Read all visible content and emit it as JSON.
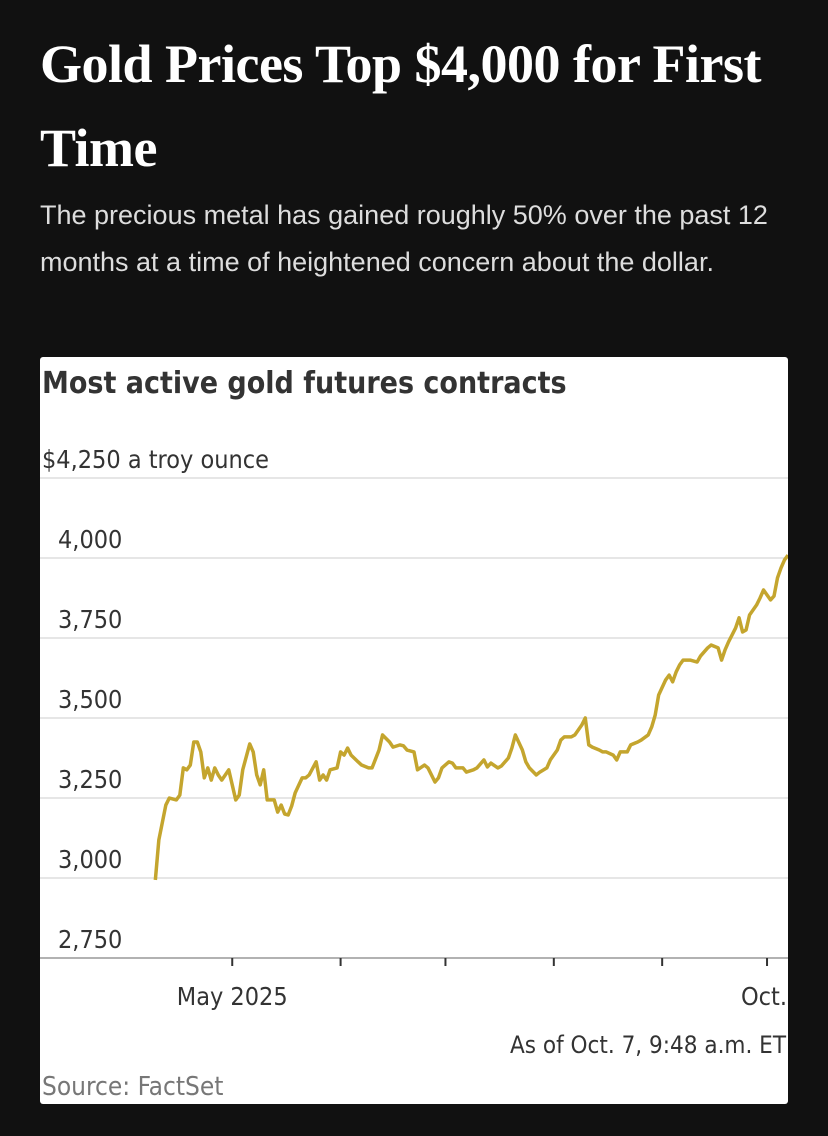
{
  "headline": "Gold Prices Top $4,000 for First Time",
  "subheadline": "The precious metal has gained roughly 50% over the past 12 months at a time of heightened concern about the dollar.",
  "chart_data": {
    "type": "line",
    "title": "Most active gold futures contracts",
    "note": "As of Oct. 7, 9:48 a.m. ET",
    "source": "Source: FactSet",
    "x": [
      99,
      100,
      102,
      103,
      105,
      106,
      107,
      108,
      109,
      110,
      111,
      112,
      113,
      114,
      115,
      116,
      117,
      118,
      120,
      122,
      123,
      124,
      126,
      127,
      128,
      129,
      130,
      131,
      133,
      134,
      135,
      136,
      137,
      138,
      139,
      141,
      142,
      143,
      145,
      146,
      147,
      148,
      149,
      151,
      152,
      153,
      154,
      155,
      157,
      158,
      160,
      161,
      163,
      164,
      166,
      167,
      169,
      170,
      171,
      173,
      174,
      176,
      177,
      179,
      180,
      181,
      183,
      184,
      185,
      187,
      188,
      190,
      191,
      193,
      194,
      195,
      197,
      198,
      200,
      201,
      202,
      204,
      205,
      206,
      208,
      209,
      211,
      212,
      214,
      215,
      216,
      218,
      219,
      221,
      222,
      223,
      224,
      226,
      227,
      228,
      230,
      231,
      232,
      234,
      235,
      237,
      238,
      240,
      241,
      242,
      243,
      245,
      246,
      247,
      248,
      249,
      250,
      252,
      254,
      255,
      257,
      258,
      260,
      261,
      262,
      263,
      265,
      266,
      267,
      268,
      269,
      271,
      272,
      273,
      275,
      276,
      277,
      278,
      279,
      280
    ],
    "series": [
      {
        "color": "#c4a52e",
        "values": [
          2994,
          3119,
          3228,
          3250,
          3244,
          3259,
          3344,
          3338,
          3353,
          3425,
          3425,
          3394,
          3313,
          3344,
          3306,
          3344,
          3322,
          3306,
          3338,
          3244,
          3259,
          3338,
          3419,
          3394,
          3322,
          3291,
          3338,
          3244,
          3244,
          3206,
          3228,
          3200,
          3197,
          3225,
          3266,
          3313,
          3313,
          3322,
          3363,
          3306,
          3322,
          3306,
          3338,
          3344,
          3394,
          3384,
          3406,
          3384,
          3363,
          3353,
          3344,
          3344,
          3400,
          3447,
          3425,
          3409,
          3416,
          3413,
          3400,
          3394,
          3338,
          3353,
          3344,
          3300,
          3313,
          3344,
          3363,
          3359,
          3344,
          3344,
          3331,
          3338,
          3344,
          3369,
          3347,
          3359,
          3344,
          3350,
          3375,
          3406,
          3447,
          3400,
          3363,
          3344,
          3322,
          3331,
          3344,
          3369,
          3400,
          3431,
          3441,
          3441,
          3447,
          3478,
          3500,
          3416,
          3409,
          3400,
          3394,
          3394,
          3384,
          3369,
          3394,
          3394,
          3416,
          3425,
          3431,
          3447,
          3472,
          3509,
          3572,
          3619,
          3634,
          3613,
          3644,
          3666,
          3681,
          3681,
          3675,
          3694,
          3719,
          3728,
          3719,
          3681,
          3713,
          3738,
          3781,
          3813,
          3769,
          3775,
          3822,
          3853,
          3875,
          3900,
          3869,
          3881,
          3938,
          3969,
          3994,
          4009
        ]
      }
    ],
    "xlim": [
      66,
      280
    ],
    "xticks": [
      {
        "value": 121,
        "label": "May 2025"
      },
      {
        "value": 152,
        "label": null
      },
      {
        "value": 182,
        "label": null
      },
      {
        "value": 213,
        "label": null
      },
      {
        "value": 244,
        "label": null
      },
      {
        "value": 274,
        "label": "Oct."
      }
    ],
    "ylim": [
      2750,
      4250
    ],
    "yticks": [
      {
        "value": 4250,
        "label": "$4,250 a troy ounce"
      },
      {
        "value": 4000,
        "label": "4,000"
      },
      {
        "value": 3750,
        "label": "3,750"
      },
      {
        "value": 3500,
        "label": "3,500"
      },
      {
        "value": 3250,
        "label": "3,250"
      },
      {
        "value": 3000,
        "label": "3,000"
      },
      {
        "value": 2750,
        "label": "2,750"
      }
    ],
    "grid": true
  }
}
